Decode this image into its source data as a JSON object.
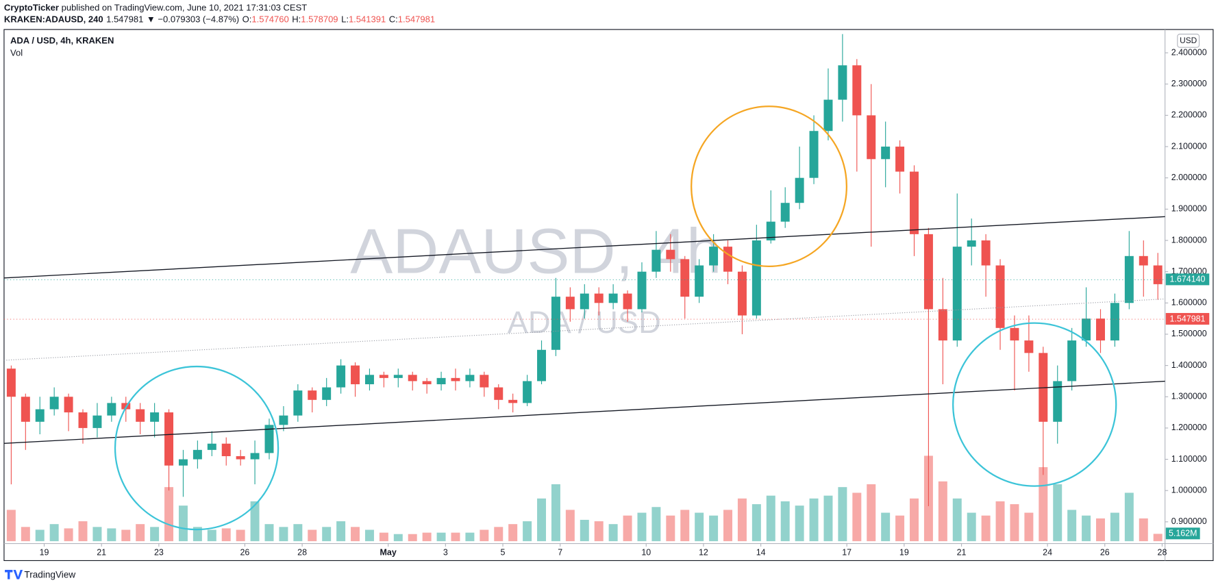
{
  "header": {
    "author": "CryptoTicker",
    "published": " published on TradingView.com, June 10, 2021 17:31:03 CEST",
    "symbol": "KRAKEN:ADAUSD, 240",
    "price": "1.547981",
    "change": "▼ −0.079303 (−4.87%)",
    "ohlc": [
      {
        "label": "O:",
        "value": "1.574760"
      },
      {
        "label": "H:",
        "value": "1.578709"
      },
      {
        "label": "L:",
        "value": "1.541391"
      },
      {
        "label": "C:",
        "value": "1.547981"
      }
    ]
  },
  "footer": {
    "brand": "TradingView"
  },
  "chart_data": {
    "type": "candlestick",
    "symbol_label": "ADA / USD, 4h, KRAKEN",
    "volume_label": "Vol",
    "currency": "USD",
    "watermark": [
      "ADAUSD, 4h",
      "ADA / USD"
    ],
    "up_color": "#26a69a",
    "down_color": "#ef5350",
    "grid": false,
    "xlim": [
      0,
      81
    ],
    "xticks": [
      {
        "value": 2.8,
        "label": "19"
      },
      {
        "value": 6.8,
        "label": "21"
      },
      {
        "value": 10.8,
        "label": "23"
      },
      {
        "value": 16.8,
        "label": "26"
      },
      {
        "value": 20.8,
        "label": "28"
      },
      {
        "value": 26.8,
        "label": "May"
      },
      {
        "value": 30.8,
        "label": "3"
      },
      {
        "value": 34.8,
        "label": "5"
      },
      {
        "value": 38.8,
        "label": "7"
      },
      {
        "value": 44.8,
        "label": "10"
      },
      {
        "value": 48.8,
        "label": "12"
      },
      {
        "value": 52.8,
        "label": "14"
      },
      {
        "value": 58.8,
        "label": "17"
      },
      {
        "value": 62.8,
        "label": "19"
      },
      {
        "value": 66.8,
        "label": "21"
      },
      {
        "value": 72.8,
        "label": "24"
      },
      {
        "value": 76.8,
        "label": "26"
      },
      {
        "value": 80.8,
        "label": "28"
      }
    ],
    "ylim": [
      0.776,
      2.4745
    ],
    "yticks": [
      {
        "value": 0.9,
        "label": "0.900000"
      },
      {
        "value": 1.0,
        "label": "1.000000"
      },
      {
        "value": 1.1,
        "label": "1.100000"
      },
      {
        "value": 1.2,
        "label": "1.200000"
      },
      {
        "value": 1.3,
        "label": "1.300000"
      },
      {
        "value": 1.4,
        "label": "1.400000"
      },
      {
        "value": 1.5,
        "label": "1.500000"
      },
      {
        "value": 1.6,
        "label": "1.600000"
      },
      {
        "value": 1.7,
        "label": "1.700000"
      },
      {
        "value": 1.8,
        "label": "1.800000"
      },
      {
        "value": 1.9,
        "label": "1.900000"
      },
      {
        "value": 2.0,
        "label": "2.000000"
      },
      {
        "value": 2.1,
        "label": "2.100000"
      },
      {
        "value": 2.2,
        "label": "2.200000"
      },
      {
        "value": 2.3,
        "label": "2.300000"
      },
      {
        "value": 2.4,
        "label": "2.400000"
      }
    ],
    "price_labels": [
      {
        "value": 1.67414,
        "label": "1.674140",
        "color": "#26a69a"
      },
      {
        "value": 1.547981,
        "label": "1.547981",
        "color": "#ef5350"
      }
    ],
    "open": [
      1.39,
      1.3,
      1.22,
      1.26,
      1.3,
      1.25,
      1.2,
      1.24,
      1.28,
      1.26,
      1.22,
      1.25,
      1.08,
      1.1,
      1.13,
      1.15,
      1.11,
      1.1,
      1.12,
      1.21,
      1.24,
      1.32,
      1.29,
      1.33,
      1.4,
      1.34,
      1.37,
      1.36,
      1.37,
      1.35,
      1.34,
      1.36,
      1.35,
      1.37,
      1.33,
      1.29,
      1.28,
      1.35,
      1.45,
      1.62,
      1.58,
      1.63,
      1.6,
      1.63,
      1.58,
      1.7,
      1.77,
      1.74,
      1.62,
      1.72,
      1.78,
      1.7,
      1.56,
      1.8,
      1.86,
      1.92,
      2.0,
      2.15,
      2.25,
      2.36,
      2.2,
      2.06,
      2.1,
      2.02,
      1.82,
      1.58,
      1.48,
      1.78,
      1.8,
      1.72,
      1.52,
      1.48,
      1.44,
      1.22,
      1.35,
      1.48,
      1.55,
      1.48,
      1.6,
      1.75,
      1.72
    ],
    "high": [
      1.4,
      1.31,
      1.3,
      1.33,
      1.31,
      1.26,
      1.28,
      1.3,
      1.3,
      1.28,
      1.28,
      1.26,
      1.13,
      1.16,
      1.19,
      1.17,
      1.13,
      1.16,
      1.23,
      1.27,
      1.34,
      1.33,
      1.36,
      1.42,
      1.41,
      1.39,
      1.38,
      1.39,
      1.38,
      1.36,
      1.38,
      1.39,
      1.39,
      1.38,
      1.34,
      1.31,
      1.37,
      1.48,
      1.68,
      1.65,
      1.66,
      1.65,
      1.66,
      1.64,
      1.73,
      1.83,
      1.82,
      1.75,
      1.74,
      1.82,
      1.8,
      1.72,
      1.85,
      1.96,
      1.97,
      2.1,
      2.2,
      2.35,
      2.46,
      2.38,
      2.3,
      2.18,
      2.12,
      2.04,
      1.84,
      1.68,
      1.95,
      1.87,
      1.82,
      1.74,
      1.56,
      1.56,
      1.46,
      1.4,
      1.52,
      1.65,
      1.58,
      1.63,
      1.83,
      1.8,
      1.76
    ],
    "low": [
      1.02,
      1.13,
      1.18,
      1.24,
      1.19,
      1.15,
      1.17,
      1.22,
      1.22,
      1.18,
      1.17,
      1.0,
      0.98,
      1.07,
      1.11,
      1.08,
      1.08,
      1.02,
      1.1,
      1.19,
      1.22,
      1.25,
      1.27,
      1.31,
      1.3,
      1.32,
      1.33,
      1.33,
      1.32,
      1.31,
      1.32,
      1.32,
      1.33,
      1.3,
      1.26,
      1.25,
      1.27,
      1.34,
      1.43,
      1.54,
      1.55,
      1.56,
      1.58,
      1.54,
      1.57,
      1.68,
      1.7,
      1.55,
      1.6,
      1.7,
      1.66,
      1.5,
      1.55,
      1.79,
      1.84,
      1.9,
      1.98,
      2.12,
      2.18,
      2.02,
      1.78,
      1.97,
      1.95,
      1.75,
      0.95,
      1.34,
      1.46,
      1.72,
      1.62,
      1.45,
      1.32,
      1.38,
      1.05,
      1.15,
      1.32,
      1.46,
      1.44,
      1.46,
      1.58,
      1.62,
      1.61
    ],
    "close": [
      1.3,
      1.22,
      1.26,
      1.3,
      1.25,
      1.2,
      1.24,
      1.28,
      1.26,
      1.22,
      1.25,
      1.08,
      1.1,
      1.13,
      1.15,
      1.11,
      1.1,
      1.12,
      1.21,
      1.24,
      1.32,
      1.29,
      1.33,
      1.4,
      1.34,
      1.37,
      1.36,
      1.37,
      1.35,
      1.34,
      1.36,
      1.35,
      1.37,
      1.33,
      1.29,
      1.28,
      1.35,
      1.45,
      1.62,
      1.58,
      1.63,
      1.6,
      1.63,
      1.58,
      1.7,
      1.77,
      1.74,
      1.62,
      1.72,
      1.78,
      1.7,
      1.56,
      1.8,
      1.86,
      1.92,
      2.0,
      2.15,
      2.25,
      2.36,
      2.2,
      2.06,
      2.1,
      2.02,
      1.82,
      1.58,
      1.48,
      1.78,
      1.8,
      1.72,
      1.52,
      1.48,
      1.44,
      1.22,
      1.35,
      1.48,
      1.55,
      1.48,
      1.6,
      1.75,
      1.72,
      1.66
    ],
    "volume": [
      22000000,
      10000000,
      8000000,
      12000000,
      9000000,
      14000000,
      10000000,
      9000000,
      8000000,
      12000000,
      10000000,
      38000000,
      25000000,
      10000000,
      8000000,
      9000000,
      8000000,
      28000000,
      12000000,
      10000000,
      12000000,
      8000000,
      10000000,
      14000000,
      10000000,
      8000000,
      6000000,
      5000000,
      5000000,
      6000000,
      6000000,
      6000000,
      6000000,
      8000000,
      10000000,
      12000000,
      14000000,
      30000000,
      40000000,
      22000000,
      15000000,
      14000000,
      12000000,
      18000000,
      20000000,
      24000000,
      18000000,
      22000000,
      20000000,
      18000000,
      22000000,
      30000000,
      26000000,
      32000000,
      28000000,
      25000000,
      30000000,
      32000000,
      38000000,
      34000000,
      40000000,
      20000000,
      18000000,
      30000000,
      60000000,
      42000000,
      30000000,
      20000000,
      18000000,
      28000000,
      26000000,
      20000000,
      52000000,
      40000000,
      22000000,
      18000000,
      16000000,
      20000000,
      34000000,
      16000000,
      5162000
    ],
    "last_volume_label": "5.162M"
  }
}
